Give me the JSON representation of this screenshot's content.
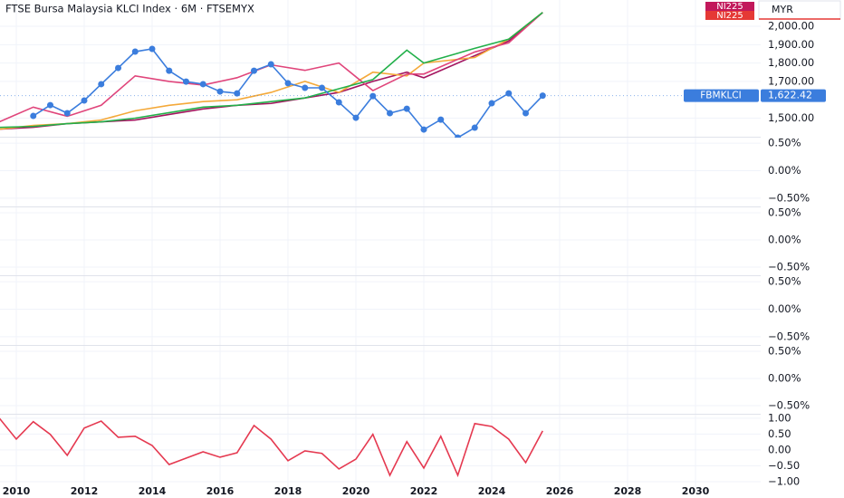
{
  "chart_data": [
    {
      "type": "line",
      "title": "FTSE Bursa Malaysia KLCI Index · 6M · FTSEMYX",
      "currency": "MYR",
      "tags": [
        "NI225",
        "NI225"
      ],
      "last_label": "1,622.42",
      "ylim": [
        1394,
        2143
      ],
      "yticks": [
        {
          "value": 1500,
          "label": "1,500.00"
        },
        {
          "value": 1700,
          "label": "1,700.00"
        },
        {
          "value": 1800,
          "label": "1,800.00"
        },
        {
          "value": 1900,
          "label": "1,900.00"
        },
        {
          "value": 2000,
          "label": "2,000.00"
        }
      ],
      "series": [
        {
          "name": "FBMKLCI",
          "color": "#3b7ddd",
          "x": [
            2010.5,
            2011,
            2011.5,
            2012,
            2012.5,
            2013,
            2013.5,
            2014,
            2014.5,
            2015,
            2015.5,
            2016,
            2016.5,
            2017,
            2017.5,
            2018,
            2018.5,
            2019,
            2019.5,
            2020,
            2020.5,
            2021,
            2021.5,
            2022,
            2022.5,
            2023,
            2023.5,
            2024,
            2024.5,
            2025,
            2025.5
          ],
          "values": [
            1512,
            1571,
            1527,
            1596,
            1685,
            1773,
            1862,
            1877,
            1758,
            1699,
            1685,
            1645,
            1635,
            1758,
            1793,
            1690,
            1665,
            1665,
            1586,
            1502,
            1620,
            1527,
            1551,
            1438,
            1492,
            1394,
            1448,
            1581,
            1635,
            1527,
            1622.42
          ]
        },
        {
          "color": "#22b04a",
          "x": [
            2009.5,
            2010.5,
            2011.5,
            2012.5,
            2013.5,
            2014.5,
            2015.5,
            2016.5,
            2017.5,
            2018.5,
            2019.5,
            2020.5,
            2021.5,
            2022,
            2023.5,
            2024.5,
            2025.5
          ],
          "values": [
            1450,
            1455,
            1470,
            1480,
            1500,
            1530,
            1560,
            1570,
            1590,
            1610,
            1660,
            1710,
            1870,
            1800,
            1880,
            1930,
            2075
          ]
        },
        {
          "color": "#e0457b",
          "x": [
            2009.5,
            2010.5,
            2011.5,
            2012.5,
            2013.5,
            2014.5,
            2015.5,
            2016.5,
            2017.5,
            2018.5,
            2019.5,
            2020.5,
            2021.5,
            2022,
            2023.5,
            2024.5,
            2025.5
          ],
          "values": [
            1480,
            1560,
            1510,
            1570,
            1730,
            1700,
            1680,
            1720,
            1790,
            1760,
            1800,
            1650,
            1740,
            1740,
            1860,
            1910,
            2075
          ]
        },
        {
          "color": "#f4a93a",
          "x": [
            2009.5,
            2010.5,
            2011.5,
            2012.5,
            2013.5,
            2014.5,
            2015.5,
            2016.5,
            2017.5,
            2018.5,
            2019.5,
            2020.5,
            2021.5,
            2022,
            2023.5,
            2024.5,
            2025.5
          ],
          "values": [
            1440,
            1460,
            1470,
            1490,
            1540,
            1570,
            1590,
            1600,
            1640,
            1700,
            1640,
            1750,
            1730,
            1800,
            1830,
            1930,
            2075
          ]
        },
        {
          "color": "#a3155f",
          "x": [
            2009.5,
            2010.5,
            2011.5,
            2012.5,
            2013.5,
            2014.5,
            2015.5,
            2016.5,
            2017.5,
            2018.5,
            2019.5,
            2020.5,
            2021.5,
            2022,
            2023.5,
            2024.5,
            2025.5
          ],
          "values": [
            1440,
            1450,
            1470,
            1480,
            1490,
            1520,
            1550,
            1570,
            1580,
            1610,
            1640,
            1700,
            1750,
            1720,
            1840,
            1920,
            2075
          ]
        }
      ]
    },
    {
      "type": "line",
      "ylim": [
        -0.65,
        0.6
      ],
      "yticks": [
        {
          "value": 0.5,
          "label": "0.50%"
        },
        {
          "value": 0,
          "label": "0.00%"
        },
        {
          "value": -0.5,
          "label": "−0.50%"
        }
      ]
    },
    {
      "type": "line",
      "ylim": [
        -0.65,
        0.6
      ],
      "yticks": [
        {
          "value": 0.5,
          "label": "0.50%"
        },
        {
          "value": 0,
          "label": "0.00%"
        },
        {
          "value": -0.5,
          "label": "−0.50%"
        }
      ]
    },
    {
      "type": "line",
      "ylim": [
        -0.65,
        0.6
      ],
      "yticks": [
        {
          "value": 0.5,
          "label": "0.50%"
        },
        {
          "value": 0,
          "label": "0.00%"
        },
        {
          "value": -0.5,
          "label": "−0.50%"
        }
      ]
    },
    {
      "type": "line",
      "ylim": [
        -0.65,
        0.6
      ],
      "yticks": [
        {
          "value": 0.5,
          "label": "0.50%"
        },
        {
          "value": 0,
          "label": "0.00%"
        },
        {
          "value": -0.5,
          "label": "−0.50%"
        }
      ]
    },
    {
      "type": "line",
      "ylim": [
        -1.23,
        1.11
      ],
      "yticks": [
        {
          "value": 1,
          "label": "1.00"
        },
        {
          "value": 0.5,
          "label": "0.50"
        },
        {
          "value": 0,
          "label": "0.00"
        },
        {
          "value": -0.5,
          "label": "−0.50"
        },
        {
          "value": -1,
          "label": "−1.00"
        }
      ],
      "xlim": [
        2009.52,
        2031.92
      ],
      "xticks": [
        2010,
        2012,
        2014,
        2016,
        2018,
        2020,
        2022,
        2024,
        2026,
        2028,
        2030
      ],
      "series": [
        {
          "color": "#e53950",
          "x": [
            2009.5,
            2010,
            2010.5,
            2011,
            2011.5,
            2012,
            2012.5,
            2013,
            2013.5,
            2014,
            2014.5,
            2015,
            2015.5,
            2016,
            2016.5,
            2017,
            2017.5,
            2018,
            2018.5,
            2019,
            2019.5,
            2020,
            2020.5,
            2021,
            2021.5,
            2022,
            2022.5,
            2023,
            2023.5,
            2024,
            2024.5,
            2025,
            2025.5
          ],
          "values": [
            1.0,
            0.34,
            0.89,
            0.49,
            -0.17,
            0.69,
            0.91,
            0.4,
            0.43,
            0.14,
            -0.46,
            -0.26,
            -0.06,
            -0.23,
            -0.09,
            0.77,
            0.34,
            -0.34,
            -0.03,
            -0.11,
            -0.6,
            -0.29,
            0.49,
            -0.8,
            0.26,
            -0.57,
            0.43,
            -0.8,
            0.83,
            0.74,
            0.34,
            -0.4,
            0.6
          ]
        }
      ]
    }
  ]
}
